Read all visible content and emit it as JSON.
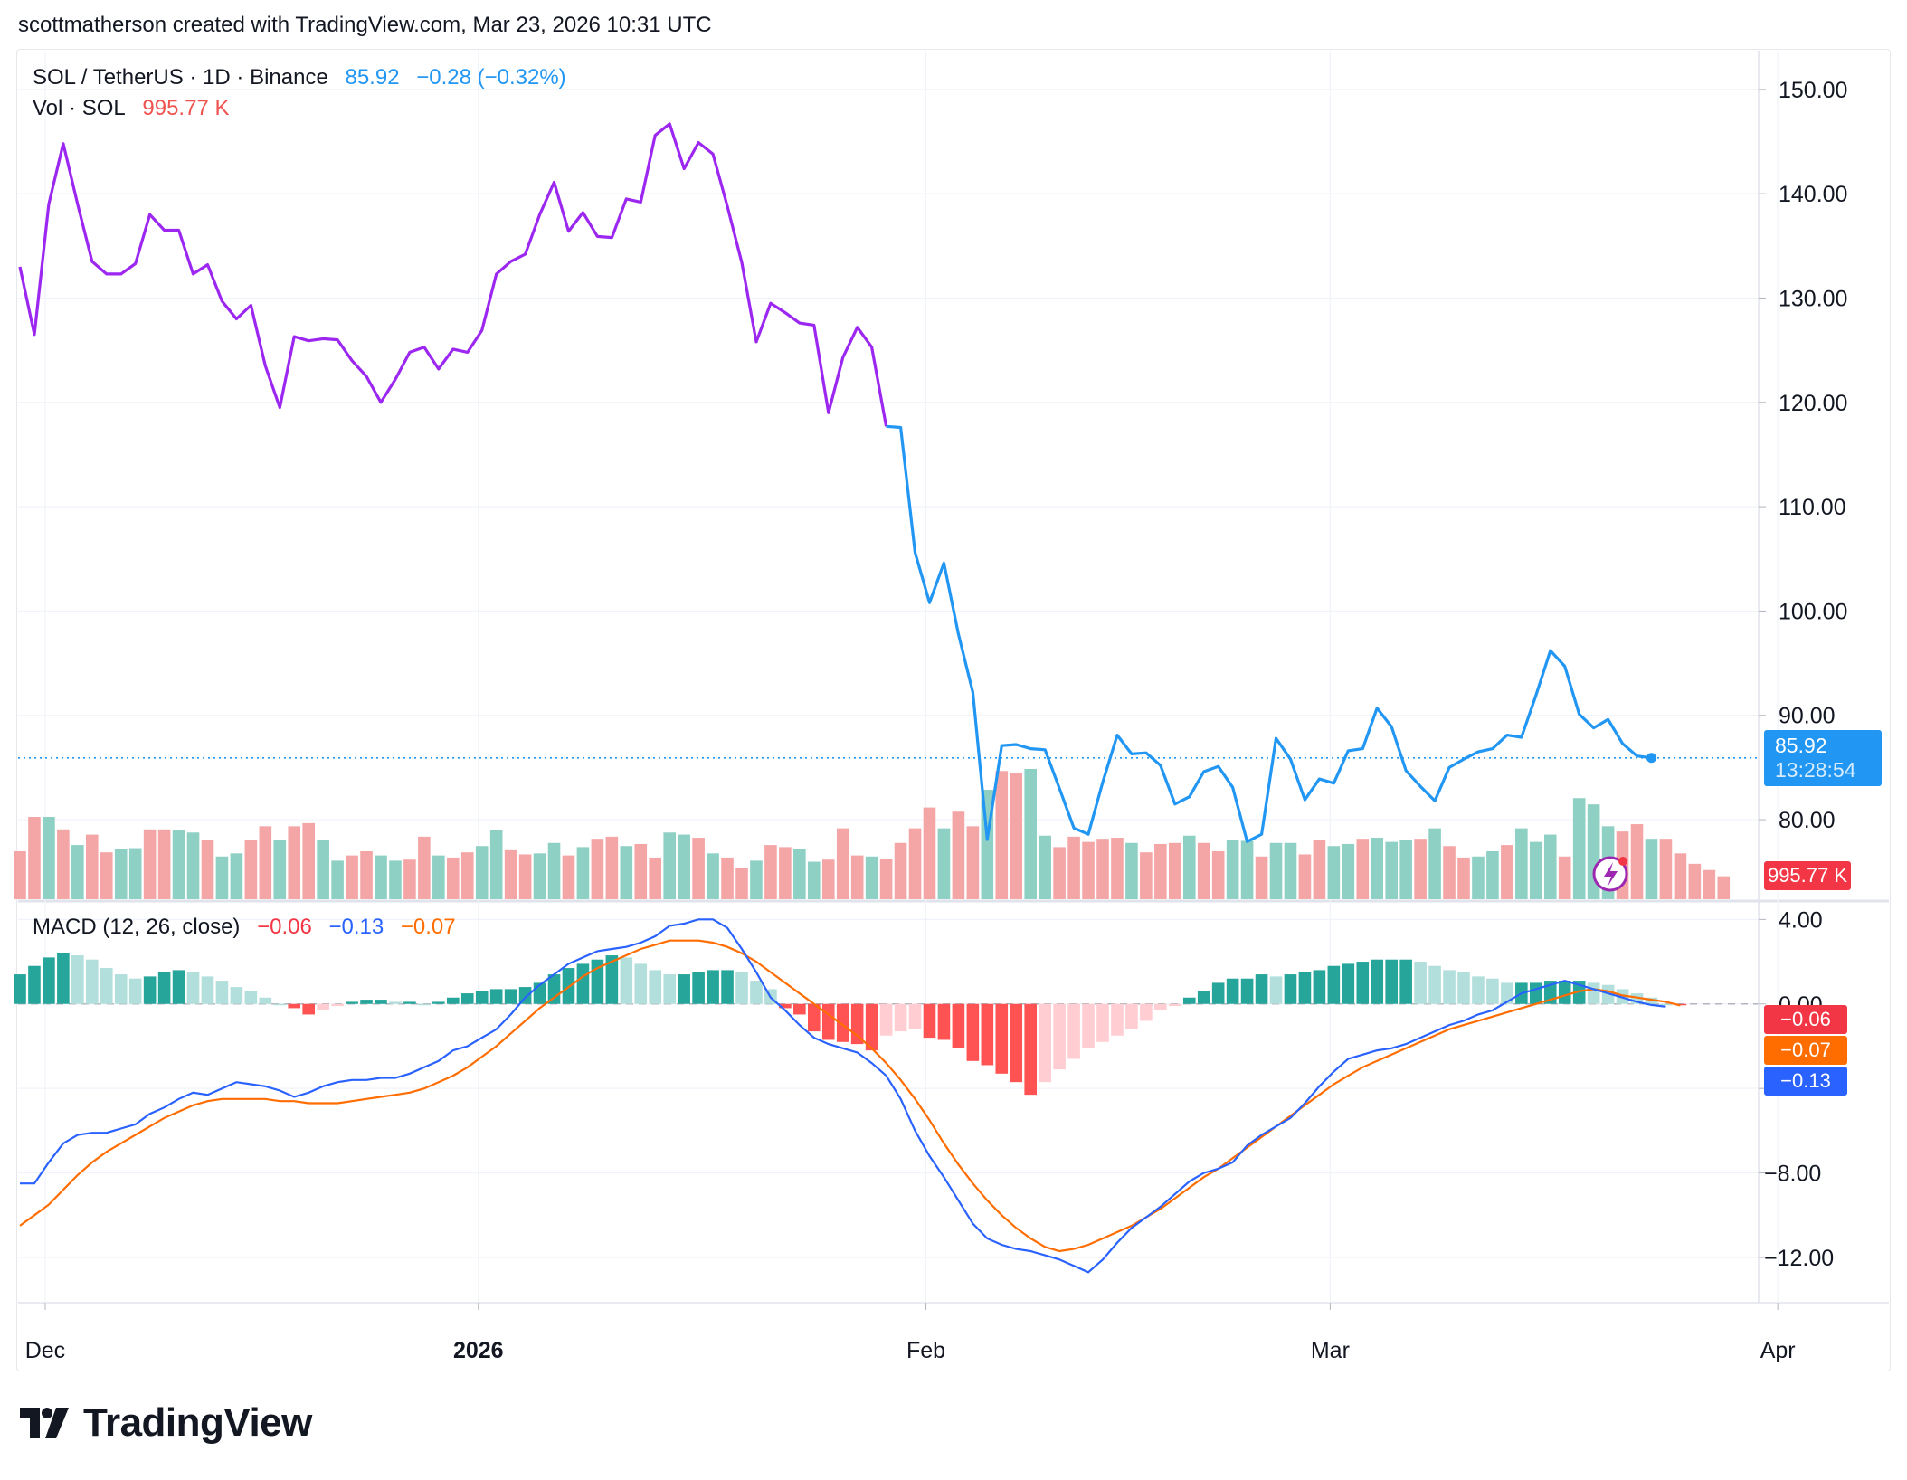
{
  "header": {
    "author_line": "scottmatherson created with TradingView.com, Mar 23, 2026 10:31 UTC"
  },
  "legend": {
    "symbol": "SOL / TetherUS · 1D · Binance",
    "last_price": "85.92",
    "change": "−0.28 (−0.32%)",
    "vol_label": "Vol · SOL",
    "vol_value": "995.77 K",
    "macd_label": "MACD (12, 26, close)",
    "macd_hist": "−0.06",
    "macd_line": "−0.13",
    "macd_signal": "−0.07"
  },
  "badges": {
    "price": "85.92",
    "countdown": "13:28:54",
    "volume": "995.77 K",
    "hist": "−0.06",
    "signal": "−0.07",
    "macd": "−0.13"
  },
  "colors": {
    "price_line_early": "#9c27f0",
    "price_line_late": "#2196f3",
    "up_vol": "#8fd0c4",
    "down_vol": "#f4a6a6",
    "hist_up_strong": "#26a69a",
    "hist_up_weak": "#b2dfdb",
    "hist_down_strong": "#ff5252",
    "hist_down_weak": "#ffcdd2",
    "macd_line": "#2962ff",
    "signal_line": "#ff6d00",
    "badge_red": "#f23645",
    "badge_orange": "#ff6d00",
    "badge_blue": "#2962ff"
  },
  "logo": {
    "text": "TradingView"
  },
  "chart_data": [
    {
      "type": "line",
      "title": "SOL / TetherUS · 1D · Binance",
      "x_ticks": [
        {
          "label": "Dec",
          "index": 1
        },
        {
          "label": "2026",
          "index": 31
        },
        {
          "label": "Feb",
          "index": 62
        },
        {
          "label": "Mar",
          "index": 90
        },
        {
          "label": "Apr",
          "index": 121
        }
      ],
      "y_ticks": [
        "150.00",
        "140.00",
        "130.00",
        "120.00",
        "110.00",
        "100.00",
        "90.00",
        "80.00"
      ],
      "ylim": [
        72.2,
        152.5
      ],
      "close": [
        133,
        126.5,
        139,
        144.8,
        139,
        133.5,
        132.3,
        132.3,
        133.3,
        138,
        136.5,
        136.5,
        132.3,
        133.2,
        129.7,
        128,
        129.3,
        123.5,
        119.5,
        126.3,
        125.9,
        126.1,
        126,
        124,
        122.5,
        120,
        122.2,
        124.8,
        125.3,
        123.2,
        125.1,
        124.8,
        126.9,
        132.3,
        133.5,
        134.2,
        138,
        141.1,
        136.4,
        138.2,
        135.9,
        135.8,
        139.5,
        139.2,
        145.6,
        146.7,
        142.4,
        144.9,
        143.8,
        138.8,
        133.4,
        125.8,
        129.5,
        128.6,
        127.6,
        127.4,
        119,
        124.3,
        127.2,
        125.3,
        117.7,
        117.6,
        105.6,
        100.8,
        104.6,
        97.8,
        92.2,
        78.1,
        87.1,
        87.2,
        86.8,
        86.7,
        83,
        79.2,
        78.6,
        83.6,
        88.1,
        86.3,
        86.4,
        85.2,
        81.5,
        82.2,
        84.6,
        85.1,
        83.1,
        77.9,
        78.6,
        87.8,
        85.8,
        81.9,
        83.9,
        83.5,
        86.6,
        86.8,
        90.7,
        88.9,
        84.7,
        83.2,
        81.8,
        85,
        85.8,
        86.5,
        86.8,
        88.1,
        87.9,
        91.9,
        96.2,
        94.7,
        90.1,
        88.8,
        89.6,
        87.3,
        86.1,
        85.92
      ],
      "color_switch_index": 60
    },
    {
      "type": "bar",
      "title": "Vol · SOL",
      "last_value": "995.77 K",
      "vmax": 92,
      "values": [
        46,
        79,
        79,
        67,
        52,
        62,
        45,
        48,
        49,
        67,
        67,
        66,
        64,
        57,
        41,
        44,
        57,
        70,
        57,
        70,
        73,
        57,
        37,
        42,
        46,
        42,
        37,
        38,
        60,
        42,
        40,
        45,
        51,
        66,
        47,
        43,
        44,
        54,
        42,
        50,
        58,
        60,
        51,
        53,
        40,
        64,
        62,
        59,
        44,
        40,
        30,
        37,
        52,
        50,
        48,
        36,
        38,
        68,
        42,
        41,
        39,
        54,
        68,
        88,
        68,
        84,
        70,
        105,
        123,
        121,
        125,
        61,
        50,
        60,
        55,
        58,
        59,
        54,
        45,
        53,
        54,
        61,
        54,
        46,
        57,
        56,
        41,
        54,
        54,
        43,
        57,
        51,
        53,
        58,
        59,
        55,
        57,
        58,
        68,
        51,
        40,
        41,
        46,
        52,
        68,
        55,
        62,
        41,
        97,
        91,
        70,
        65,
        72,
        58,
        58,
        44,
        34,
        28,
        22
      ],
      "directions": "ddududduudduuduuddudduudduuddudduudduududdudduududdudduudddudddduddudduudddddudddudduuduudduuduuududduuduuuduuuddud"
    },
    {
      "type": "bar",
      "title": "MACD (12, 26, close)",
      "y_ticks": [
        "4.00",
        "0.00",
        "−4.00",
        "−8.00",
        "−12.00"
      ],
      "ylim": [
        -13.8,
        4.7
      ],
      "histogram": [
        1.4,
        1.8,
        2.2,
        2.4,
        2.3,
        2.1,
        1.7,
        1.4,
        1.2,
        1.3,
        1.5,
        1.6,
        1.5,
        1.3,
        1.1,
        0.8,
        0.6,
        0.3,
        0.0,
        -0.2,
        -0.5,
        -0.3,
        -0.1,
        0.1,
        0.2,
        0.2,
        0.1,
        0.1,
        0.0,
        0.1,
        0.3,
        0.5,
        0.6,
        0.7,
        0.7,
        0.8,
        1.0,
        1.4,
        1.7,
        1.9,
        2.1,
        2.3,
        2.2,
        1.9,
        1.6,
        1.4,
        1.4,
        1.5,
        1.6,
        1.6,
        1.5,
        1.1,
        0.7,
        -0.2,
        -0.5,
        -1.3,
        -1.7,
        -1.8,
        -1.9,
        -2.2,
        -1.5,
        -1.3,
        -1.2,
        -1.6,
        -1.7,
        -2.1,
        -2.7,
        -2.9,
        -3.3,
        -3.7,
        -4.3,
        -3.7,
        -3.1,
        -2.6,
        -2.1,
        -1.8,
        -1.5,
        -1.2,
        -0.8,
        -0.3,
        -0.1,
        0.3,
        0.6,
        1.0,
        1.2,
        1.2,
        1.4,
        1.3,
        1.4,
        1.5,
        1.6,
        1.8,
        1.9,
        2.0,
        2.1,
        2.1,
        2.1,
        2.0,
        1.8,
        1.6,
        1.5,
        1.3,
        1.2,
        1.0,
        1.0,
        1.0,
        1.1,
        1.1,
        1.1,
        1.0,
        0.9,
        0.7,
        0.5,
        0.3,
        0.0,
        -0.06
      ],
      "macd": [
        -8.5,
        -8.5,
        -7.5,
        -6.6,
        -6.2,
        -6.1,
        -6.1,
        -5.9,
        -5.7,
        -5.2,
        -4.9,
        -4.5,
        -4.2,
        -4.3,
        -4.0,
        -3.7,
        -3.8,
        -3.9,
        -4.1,
        -4.4,
        -4.2,
        -3.9,
        -3.7,
        -3.6,
        -3.6,
        -3.5,
        -3.5,
        -3.3,
        -3.0,
        -2.7,
        -2.2,
        -2.0,
        -1.6,
        -1.2,
        -0.5,
        0.3,
        0.9,
        1.4,
        1.9,
        2.2,
        2.5,
        2.6,
        2.7,
        2.9,
        3.2,
        3.7,
        3.8,
        4.0,
        4.0,
        3.6,
        2.6,
        1.5,
        0.3,
        -0.3,
        -1.0,
        -1.6,
        -1.9,
        -2.1,
        -2.3,
        -2.8,
        -3.4,
        -4.5,
        -6.0,
        -7.2,
        -8.2,
        -9.3,
        -10.4,
        -11.1,
        -11.4,
        -11.6,
        -11.7,
        -11.9,
        -12.1,
        -12.4,
        -12.7,
        -12.1,
        -11.3,
        -10.6,
        -10.1,
        -9.6,
        -9.0,
        -8.4,
        -8.0,
        -7.8,
        -7.5,
        -6.7,
        -6.2,
        -5.8,
        -5.4,
        -4.7,
        -3.9,
        -3.2,
        -2.6,
        -2.4,
        -2.2,
        -2.1,
        -1.9,
        -1.6,
        -1.3,
        -1.0,
        -0.8,
        -0.5,
        -0.3,
        0.1,
        0.5,
        0.7,
        0.9,
        1.1,
        0.9,
        0.7,
        0.5,
        0.3,
        0.1,
        -0.05,
        -0.13
      ],
      "signal": [
        -10.5,
        -10.0,
        -9.5,
        -8.8,
        -8.1,
        -7.5,
        -7.0,
        -6.6,
        -6.2,
        -5.8,
        -5.4,
        -5.1,
        -4.8,
        -4.6,
        -4.5,
        -4.5,
        -4.5,
        -4.5,
        -4.6,
        -4.6,
        -4.7,
        -4.7,
        -4.7,
        -4.6,
        -4.5,
        -4.4,
        -4.3,
        -4.2,
        -4.0,
        -3.7,
        -3.4,
        -3.0,
        -2.5,
        -2.0,
        -1.4,
        -0.8,
        -0.2,
        0.3,
        0.8,
        1.3,
        1.7,
        2.0,
        2.3,
        2.6,
        2.8,
        3.0,
        3.0,
        3.0,
        2.9,
        2.7,
        2.4,
        2.0,
        1.5,
        1.0,
        0.5,
        0.0,
        -0.5,
        -1.0,
        -1.5,
        -2.1,
        -2.8,
        -3.6,
        -4.5,
        -5.5,
        -6.6,
        -7.6,
        -8.5,
        -9.3,
        -10.0,
        -10.6,
        -11.1,
        -11.5,
        -11.7,
        -11.6,
        -11.4,
        -11.1,
        -10.8,
        -10.5,
        -10.1,
        -9.7,
        -9.2,
        -8.7,
        -8.2,
        -7.8,
        -7.3,
        -6.8,
        -6.3,
        -5.8,
        -5.3,
        -4.8,
        -4.3,
        -3.8,
        -3.4,
        -3.0,
        -2.7,
        -2.4,
        -2.1,
        -1.8,
        -1.5,
        -1.2,
        -1.0,
        -0.8,
        -0.6,
        -0.4,
        -0.2,
        0.0,
        0.2,
        0.4,
        0.6,
        0.7,
        0.6,
        0.4,
        0.3,
        0.2,
        0.1,
        -0.07
      ]
    }
  ]
}
